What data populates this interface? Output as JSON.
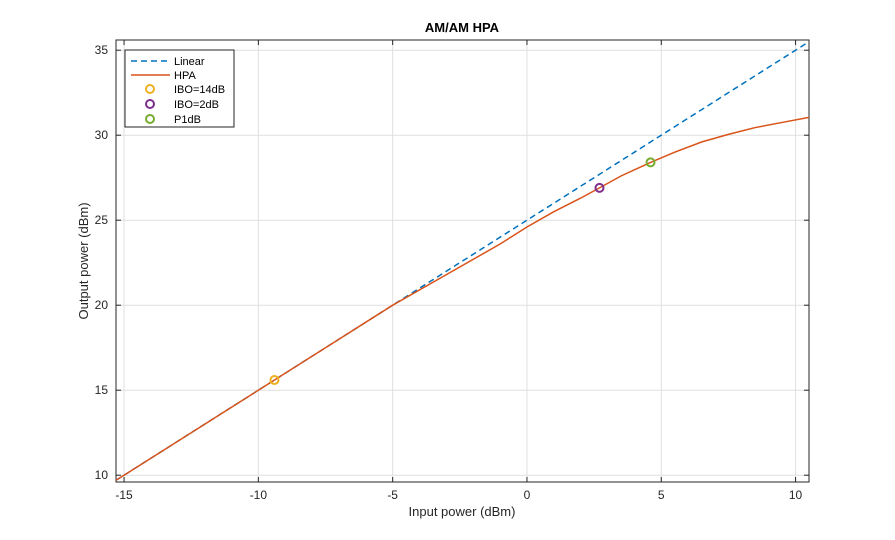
{
  "chart_data": {
    "type": "line",
    "title": "AM/AM HPA",
    "xlabel": "Input power (dBm)",
    "ylabel": "Output power (dBm)",
    "xlim": [
      -15.3,
      10.5
    ],
    "ylim": [
      9.6,
      35.6
    ],
    "xticks": [
      -15,
      -10,
      -5,
      0,
      5,
      10
    ],
    "yticks": [
      10,
      15,
      20,
      25,
      30,
      35
    ],
    "grid": true,
    "legend_position": "top-left",
    "series": [
      {
        "name": "Linear",
        "style": "dashed",
        "color": "#0072BD",
        "x": [
          -15.3,
          10.5
        ],
        "y": [
          9.7,
          35.5
        ]
      },
      {
        "name": "HPA",
        "style": "solid",
        "color": "#D95319",
        "x": [
          -15.3,
          -12,
          -9.4,
          -7,
          -5,
          -3,
          -1,
          0,
          1,
          2,
          2.7,
          3.5,
          4.6,
          5.5,
          6.5,
          7.5,
          8.5,
          9.5,
          10.5
        ],
        "y": [
          9.7,
          13.0,
          15.6,
          18.0,
          20.0,
          21.8,
          23.6,
          24.6,
          25.5,
          26.3,
          26.9,
          27.6,
          28.4,
          29.0,
          29.6,
          30.05,
          30.45,
          30.75,
          31.05
        ]
      }
    ],
    "markers": [
      {
        "name": "IBO=14dB",
        "color": "#EDB120",
        "x": -9.4,
        "y": 15.6
      },
      {
        "name": "IBO=2dB",
        "color": "#7E2F8E",
        "x": 2.7,
        "y": 26.9
      },
      {
        "name": "P1dB",
        "color": "#77AC30",
        "x": 4.6,
        "y": 28.4
      }
    ]
  }
}
